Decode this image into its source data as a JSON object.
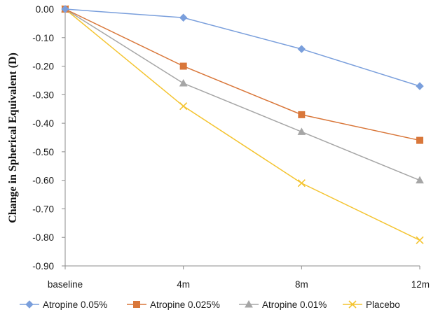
{
  "chart_data": {
    "type": "line",
    "ylabel": "Change in Spherical Equivalent (D)",
    "xlabel": "",
    "categories": [
      "baseline",
      "4m",
      "8m",
      "12m"
    ],
    "ylim": [
      -0.9,
      0.0
    ],
    "yticks": [
      "0.00",
      "-0.10",
      "-0.20",
      "-0.30",
      "-0.40",
      "-0.50",
      "-0.60",
      "-0.70",
      "-0.80",
      "-0.90"
    ],
    "grid": false,
    "legend": "bottom",
    "series": [
      {
        "name": "Atropine 0.05%",
        "values": [
          0.0,
          -0.03,
          -0.14,
          -0.27
        ],
        "color": "#7a9fdc",
        "marker": "diamond"
      },
      {
        "name": "Atropine 0.025%",
        "values": [
          0.0,
          -0.2,
          -0.37,
          -0.46
        ],
        "color": "#d9773a",
        "marker": "square"
      },
      {
        "name": "Atropine 0.01%",
        "values": [
          0.0,
          -0.26,
          -0.43,
          -0.6
        ],
        "color": "#a6a6a6",
        "marker": "triangle"
      },
      {
        "name": "Placebo",
        "values": [
          0.0,
          -0.34,
          -0.61,
          -0.81
        ],
        "color": "#f4c430",
        "marker": "cross"
      }
    ]
  }
}
